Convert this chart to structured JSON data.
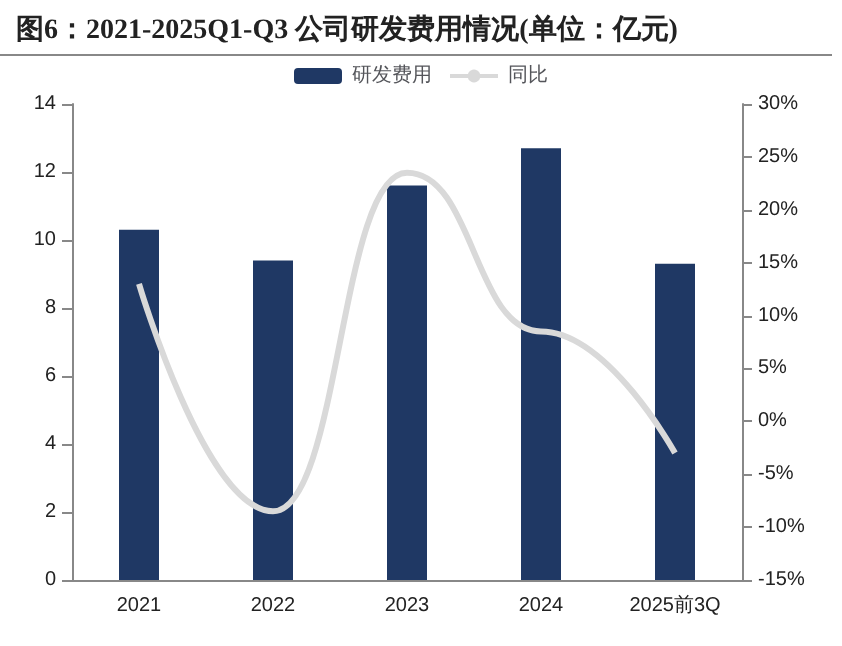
{
  "chart_data": {
    "type": "bar",
    "title": "图6：2021-2025Q1-Q3 公司研发费用情况(单位：亿元)",
    "categories": [
      "2021",
      "2022",
      "2023",
      "2024",
      "2025前3Q"
    ],
    "series": [
      {
        "name": "研发费用",
        "color": "#1f3864",
        "values": [
          10.3,
          9.4,
          11.6,
          12.7,
          9.3
        ]
      },
      {
        "name": "同比",
        "type": "line",
        "axis": "y2",
        "color": "#d9d9d9",
        "values": [
          13,
          -8.5,
          23.5,
          8.5,
          -3
        ]
      }
    ],
    "ylim": [
      0,
      14
    ],
    "yticks": [
      0,
      2,
      4,
      6,
      8,
      10,
      12,
      14
    ],
    "y2lim": [
      -15,
      30
    ],
    "y2ticks": [
      {
        "value": -15,
        "label": "-15%"
      },
      {
        "value": -10,
        "label": "-10%"
      },
      {
        "value": -5,
        "label": "-5%"
      },
      {
        "value": 0,
        "label": "0%"
      },
      {
        "value": 5,
        "label": "5%"
      },
      {
        "value": 10,
        "label": "10%"
      },
      {
        "value": 15,
        "label": "15%"
      },
      {
        "value": 20,
        "label": "20%"
      },
      {
        "value": 25,
        "label": "25%"
      },
      {
        "value": 30,
        "label": "30%"
      }
    ],
    "legend": "top",
    "grid": false,
    "marker": "none",
    "line_style": "solid"
  }
}
